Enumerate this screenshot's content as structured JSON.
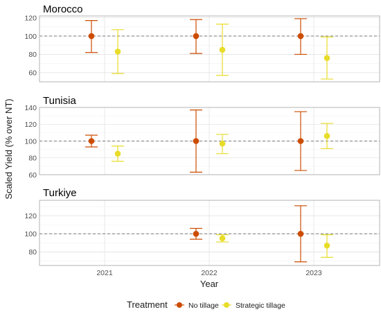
{
  "chart_data": {
    "type": "scatter",
    "subtype": "point-with-errorbars (faceted)",
    "xlabel": "Year",
    "ylabel": "Scaled Yield (% over NT)",
    "x_categories": [
      "2021",
      "2022",
      "2023"
    ],
    "reference_line": {
      "y": 100,
      "style": "dashed"
    },
    "grid": true,
    "legend": {
      "title": "Treatment",
      "placement": "bottom",
      "entries": [
        {
          "name": "No tillage",
          "color": "#cc4c02"
        },
        {
          "name": "Strategic tillage",
          "color": "#e8dc2a"
        }
      ]
    },
    "facets": [
      {
        "title": "Morocco",
        "ylim": [
          50,
          122
        ],
        "yticks": [
          60,
          80,
          100,
          120
        ],
        "series": [
          {
            "name": "No tillage",
            "points": [
              {
                "x": "2021",
                "y": 100,
                "low": 82,
                "high": 117
              },
              {
                "x": "2022",
                "y": 100,
                "low": 81,
                "high": 118
              },
              {
                "x": "2023",
                "y": 100,
                "low": 80,
                "high": 119
              }
            ]
          },
          {
            "name": "Strategic tillage",
            "points": [
              {
                "x": "2021",
                "y": 83,
                "low": 59,
                "high": 107
              },
              {
                "x": "2022",
                "y": 85,
                "low": 57,
                "high": 113
              },
              {
                "x": "2023",
                "y": 76,
                "low": 53,
                "high": 99
              }
            ]
          }
        ]
      },
      {
        "title": "Tunisia",
        "ylim": [
          60,
          140
        ],
        "yticks": [
          60,
          80,
          100,
          120,
          140
        ],
        "series": [
          {
            "name": "No tillage",
            "points": [
              {
                "x": "2021",
                "y": 100,
                "low": 93,
                "high": 107
              },
              {
                "x": "2022",
                "y": 100,
                "low": 63,
                "high": 137
              },
              {
                "x": "2023",
                "y": 100,
                "low": 65,
                "high": 135
              }
            ]
          },
          {
            "name": "Strategic tillage",
            "points": [
              {
                "x": "2021",
                "y": 85,
                "low": 76,
                "high": 94
              },
              {
                "x": "2022",
                "y": 97,
                "low": 85,
                "high": 108
              },
              {
                "x": "2023",
                "y": 106,
                "low": 91,
                "high": 121
              }
            ]
          }
        ]
      },
      {
        "title": "Turkiye",
        "ylim": [
          65,
          137
        ],
        "yticks": [
          80,
          100,
          120
        ],
        "series": [
          {
            "name": "No tillage",
            "points": [
              {
                "x": "2022",
                "y": 100,
                "low": 94,
                "high": 106
              },
              {
                "x": "2023",
                "y": 100,
                "low": 69,
                "high": 131
              }
            ]
          },
          {
            "name": "Strategic tillage",
            "points": [
              {
                "x": "2022",
                "y": 95,
                "low": 91,
                "high": 99
              },
              {
                "x": "2023",
                "y": 87,
                "low": 74,
                "high": 99
              }
            ]
          }
        ]
      }
    ]
  }
}
